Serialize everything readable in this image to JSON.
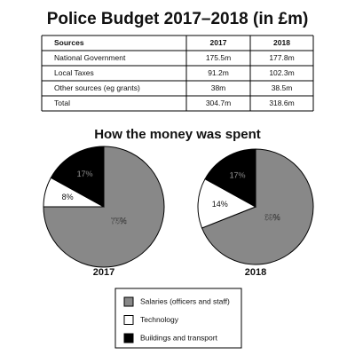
{
  "title": "Police Budget 2017–2018 (in £m)",
  "table": {
    "header": [
      "Sources",
      "2017",
      "2018"
    ],
    "rows": [
      [
        "National Government",
        "175.5m",
        "177.8m"
      ],
      [
        "Local Taxes",
        "91.2m",
        "102.3m"
      ],
      [
        "Other sources (eg grants)",
        "38m",
        "38.5m"
      ],
      [
        "Total",
        "304.7m",
        "318.6m"
      ]
    ]
  },
  "subtitle": "How the money was spent",
  "chart_data": [
    {
      "type": "pie",
      "title": "2017",
      "categories": [
        "Salaries (officers and staff)",
        "Technology",
        "Buildings and transport"
      ],
      "values": [
        75,
        8,
        17
      ],
      "value_labels": [
        "75%",
        "8%",
        "17%"
      ],
      "colors": [
        "#888888",
        "#ffffff",
        "#000000"
      ]
    },
    {
      "type": "pie",
      "title": "2018",
      "categories": [
        "Salaries (officers and staff)",
        "Technology",
        "Buildings and transport"
      ],
      "values": [
        69,
        14,
        17
      ],
      "value_labels": [
        "69%",
        "14%",
        "17%"
      ],
      "colors": [
        "#888888",
        "#ffffff",
        "#000000"
      ]
    }
  ]
}
